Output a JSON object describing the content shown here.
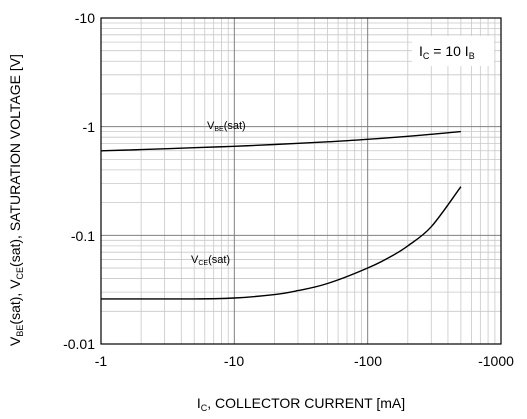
{
  "chart_data": {
    "type": "line",
    "x_scale": "log",
    "y_scale": "log",
    "xlim": [
      -1,
      -1000
    ],
    "ylim": [
      -0.01,
      -10
    ],
    "x_ticks": [
      "-1",
      "-10",
      "-100",
      "-1000"
    ],
    "y_ticks": [
      "-0.01",
      "-0.1",
      "-1",
      "-10"
    ],
    "grid": true,
    "xlabel": {
      "main": "I",
      "sub": "C",
      "rest": ", COLLECTOR CURRENT [mA]"
    },
    "ylabel": {
      "p1": "V",
      "s1": "BE",
      "p2": "(sat), V",
      "s2": "CE",
      "p3": "(sat), SATURATION VOLTAGE [V]"
    },
    "annotation": {
      "p1": "I",
      "s1": "C",
      "p2": " = 10 I",
      "s2": "B"
    },
    "series": [
      {
        "name": "VBE(sat)",
        "label_main": "V",
        "label_sub": "BE",
        "label_rest": "(sat)",
        "x": [
          -1,
          -2,
          -5,
          -10,
          -20,
          -50,
          -100,
          -200,
          -300,
          -500
        ],
        "y": [
          -0.6,
          -0.615,
          -0.64,
          -0.66,
          -0.685,
          -0.725,
          -0.765,
          -0.815,
          -0.85,
          -0.9
        ]
      },
      {
        "name": "VCE(sat)",
        "label_main": "V",
        "label_sub": "CE",
        "label_rest": "(sat)",
        "x": [
          -1,
          -2,
          -5,
          -10,
          -20,
          -30,
          -50,
          -100,
          -150,
          -200,
          -300,
          -500
        ],
        "y": [
          -0.026,
          -0.026,
          -0.026,
          -0.0265,
          -0.0285,
          -0.031,
          -0.036,
          -0.05,
          -0.064,
          -0.08,
          -0.12,
          -0.28
        ]
      }
    ]
  }
}
